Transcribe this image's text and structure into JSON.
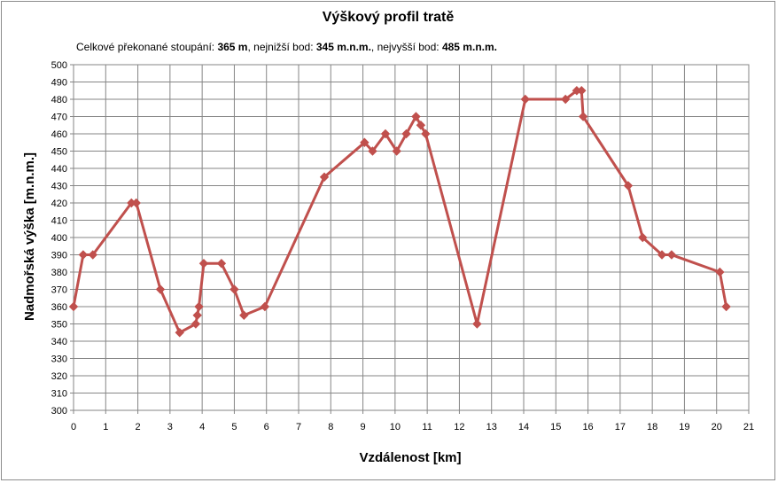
{
  "chart_data": {
    "type": "line",
    "title": "Výškový profil tratě",
    "subtitle": {
      "prefix": "Celkové překonané stoupání: ",
      "climb": "365 m",
      "mid1": ", nejnižší bod: ",
      "lowest": "345 m.n.m.",
      "mid2": ", nejvyšší bod: ",
      "highest": "485 m.n.m."
    },
    "xlabel": "Vzdálenost [km]",
    "ylabel": "Nadmořská výška [m.n.m.]",
    "xlim": [
      0,
      21
    ],
    "ylim": [
      300,
      500
    ],
    "xticks": [
      0,
      1,
      2,
      3,
      4,
      5,
      6,
      7,
      8,
      9,
      10,
      11,
      12,
      13,
      14,
      15,
      16,
      17,
      18,
      19,
      20,
      21
    ],
    "yticks": [
      300,
      310,
      320,
      330,
      340,
      350,
      360,
      370,
      380,
      390,
      400,
      410,
      420,
      430,
      440,
      450,
      460,
      470,
      480,
      490,
      500
    ],
    "grid": true,
    "legend": "none",
    "colors": {
      "series": "#c0504d",
      "grid": "#868686",
      "axis": "#868686"
    },
    "series": [
      {
        "x": [
          0,
          0.3,
          0.6,
          1.8,
          1.95,
          2.7,
          3.3,
          3.8,
          3.85,
          3.9,
          4.05,
          4.6,
          5.0,
          5.3,
          5.95,
          7.8,
          9.05,
          9.3,
          9.7,
          10.05,
          10.35,
          10.65,
          10.8,
          10.95,
          12.55,
          14.05,
          15.3,
          15.65,
          15.8,
          15.85,
          17.25,
          17.7,
          18.3,
          18.6,
          20.1,
          20.3
        ],
        "y": [
          360,
          390,
          390,
          420,
          420,
          370,
          345,
          350,
          355,
          360,
          385,
          385,
          370,
          355,
          360,
          435,
          455,
          450,
          460,
          450,
          460,
          470,
          465,
          460,
          350,
          480,
          480,
          485,
          485,
          470,
          430,
          400,
          390,
          390,
          380,
          360
        ]
      }
    ]
  }
}
